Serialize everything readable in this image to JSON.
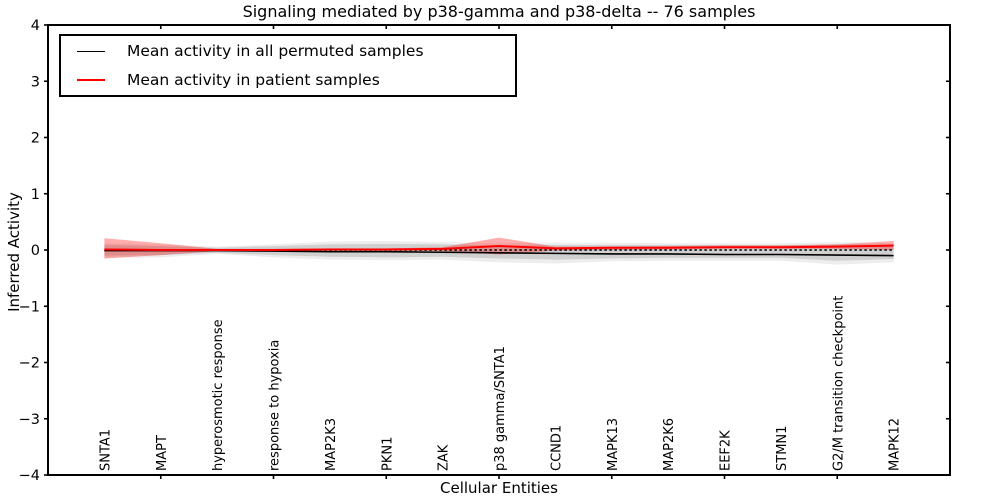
{
  "chart_data": {
    "type": "line",
    "title": "Signaling mediated by p38-gamma and p38-delta -- 76 samples",
    "xlabel": "Cellular Entities",
    "ylabel": "Inferred Activity",
    "ylim": [
      -4,
      4
    ],
    "xlim_pad": 1,
    "grid": false,
    "ytick_values": [
      4,
      3,
      2,
      1,
      0,
      -1,
      -2,
      -3,
      -4
    ],
    "ytick_labels": [
      "4",
      "3",
      "2",
      "1",
      "0",
      "−1",
      "−2",
      "−3",
      "−4"
    ],
    "top_bottom_tick_indices": [
      1,
      3,
      5,
      7,
      9,
      11,
      13
    ],
    "categories": [
      "SNTA1",
      "MAPT",
      "hyperosmotic response",
      "response to hypoxia",
      "MAP2K3",
      "PKN1",
      "ZAK",
      "p38 gamma/SNTA1",
      "CCND1",
      "MAPK13",
      "MAP2K6",
      "EEF2K",
      "STMN1",
      "G2/M transition checkpoint",
      "MAPK12"
    ],
    "bands": [
      {
        "name": "permuted-range-outer",
        "color": "#000000",
        "opacity": 0.07,
        "upper": [
          0.12,
          0.1,
          0.06,
          0.1,
          0.15,
          0.16,
          0.14,
          0.12,
          0.13,
          0.13,
          0.12,
          0.12,
          0.12,
          0.14,
          0.12
        ],
        "lower": [
          -0.14,
          -0.13,
          -0.07,
          -0.13,
          -0.17,
          -0.18,
          -0.17,
          -0.22,
          -0.24,
          -0.2,
          -0.19,
          -0.19,
          -0.19,
          -0.26,
          -0.22
        ]
      },
      {
        "name": "permuted-range-inner",
        "color": "#000000",
        "opacity": 0.12,
        "upper": [
          0.09,
          0.07,
          0.04,
          0.07,
          0.1,
          0.11,
          0.1,
          0.08,
          0.09,
          0.09,
          0.09,
          0.09,
          0.09,
          0.1,
          0.09
        ],
        "lower": [
          -0.1,
          -0.09,
          -0.05,
          -0.09,
          -0.12,
          -0.13,
          -0.12,
          -0.15,
          -0.17,
          -0.15,
          -0.14,
          -0.14,
          -0.14,
          -0.19,
          -0.16
        ]
      },
      {
        "name": "patient-range",
        "color": "#ff0000",
        "opacity": 0.32,
        "upper": [
          0.21,
          0.12,
          0.02,
          0.02,
          0.03,
          0.03,
          0.05,
          0.22,
          0.06,
          0.06,
          0.07,
          0.08,
          0.08,
          0.1,
          0.16
        ],
        "lower": [
          -0.15,
          -0.09,
          -0.02,
          -0.02,
          -0.01,
          -0.01,
          -0.02,
          -0.08,
          -0.01,
          0.0,
          0.01,
          0.02,
          0.02,
          0.02,
          0.0
        ]
      }
    ],
    "reference_line": {
      "name": "zero-reference",
      "color": "#000000",
      "style": "dashed",
      "value": 0
    },
    "series": [
      {
        "name": "permuted-mean",
        "color": "#000000",
        "style": "solid",
        "width": 1.6,
        "values": [
          -0.01,
          -0.01,
          -0.01,
          -0.02,
          -0.03,
          -0.03,
          -0.04,
          -0.05,
          -0.06,
          -0.07,
          -0.07,
          -0.08,
          -0.08,
          -0.09,
          -0.1
        ]
      },
      {
        "name": "patient-mean",
        "color": "#ff0000",
        "style": "solid",
        "width": 2,
        "values": [
          0.01,
          0.0,
          0.0,
          0.0,
          0.01,
          0.01,
          0.02,
          0.07,
          0.03,
          0.04,
          0.04,
          0.05,
          0.05,
          0.06,
          0.08
        ]
      }
    ],
    "legend": {
      "position": "upper-left",
      "entries": [
        {
          "label": "Mean activity in all permuted samples",
          "color": "#000000"
        },
        {
          "label": "Mean activity in patient samples",
          "color": "#ff0000"
        }
      ]
    },
    "axis_color": "#000000"
  }
}
